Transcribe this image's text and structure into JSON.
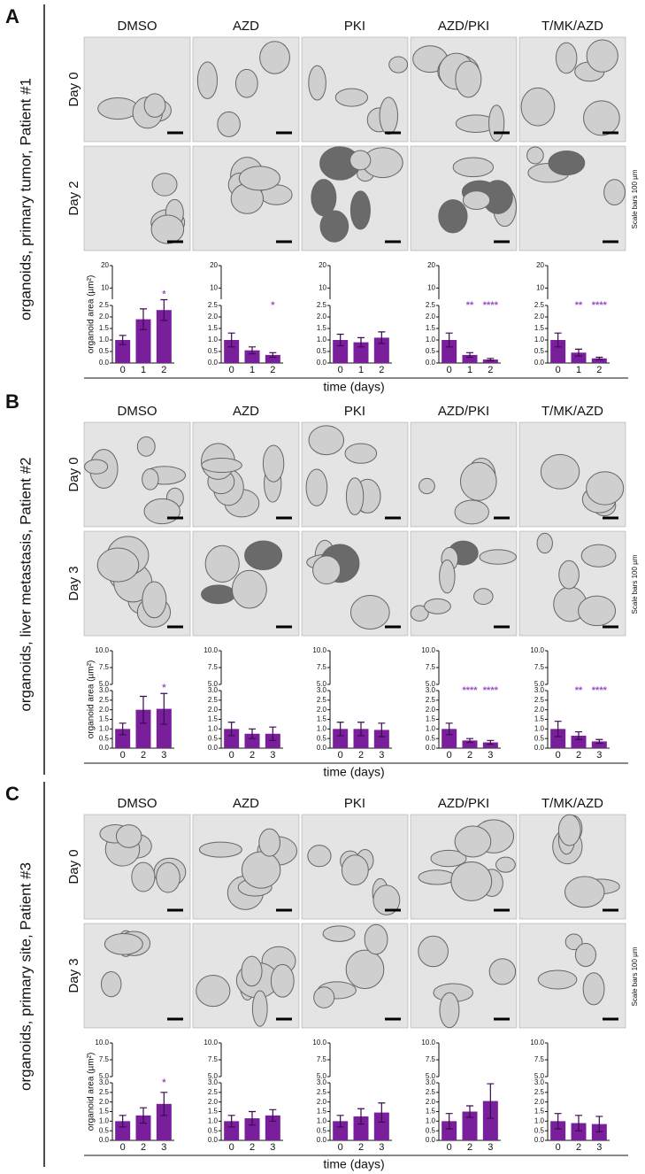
{
  "panels": [
    {
      "letter": "A",
      "side_label": "organoids, primary tumor, Patient #1",
      "conditions": [
        "DMSO",
        "AZD",
        "PKI",
        "AZD/PKI",
        "T/MK/AZD"
      ],
      "day_labels": [
        "Day 0",
        "Day 2"
      ],
      "scale_note": "Scale bars 100 µm",
      "y_label": "organoid area (µm²)",
      "x_label": "time (days)",
      "y_axis": {
        "lower": {
          "ylim": [
            0,
            2.5
          ],
          "yticks": [
            {
              "value": 0,
              "label": "0.0"
            },
            {
              "value": 0.5,
              "label": "0.5"
            },
            {
              "value": 1,
              "label": "1.0"
            },
            {
              "value": 1.5,
              "label": "1.5"
            },
            {
              "value": 2,
              "label": "2.0"
            },
            {
              "value": 2.5,
              "label": "2.5"
            }
          ]
        },
        "upper": {
          "ylim": [
            5,
            20
          ],
          "yticks": [
            10,
            20
          ]
        }
      },
      "charts": [
        {
          "type": "bar",
          "categories": [
            "0",
            "1",
            "2"
          ],
          "values": [
            1.0,
            1.9,
            2.3
          ],
          "errors": [
            0.2,
            0.45,
            0.45
          ],
          "significance": [
            null,
            null,
            "*"
          ]
        },
        {
          "type": "bar",
          "categories": [
            "0",
            "1",
            "2"
          ],
          "values": [
            1.0,
            0.55,
            0.35
          ],
          "errors": [
            0.3,
            0.15,
            0.1
          ],
          "significance": [
            null,
            null,
            "*"
          ]
        },
        {
          "type": "bar",
          "categories": [
            "0",
            "1",
            "2"
          ],
          "values": [
            1.0,
            0.9,
            1.1
          ],
          "errors": [
            0.25,
            0.2,
            0.25
          ],
          "significance": [
            null,
            null,
            null
          ]
        },
        {
          "type": "bar",
          "categories": [
            "0",
            "1",
            "2"
          ],
          "values": [
            1.0,
            0.35,
            0.15
          ],
          "errors": [
            0.3,
            0.1,
            0.05
          ],
          "significance": [
            null,
            "**",
            "****"
          ]
        },
        {
          "type": "bar",
          "categories": [
            "0",
            "1",
            "2"
          ],
          "values": [
            1.0,
            0.45,
            0.2
          ],
          "errors": [
            0.3,
            0.15,
            0.05
          ],
          "significance": [
            null,
            "**",
            "****"
          ]
        }
      ]
    },
    {
      "letter": "B",
      "side_label": "organoids, liver metastasis, Patient #2",
      "conditions": [
        "DMSO",
        "AZD",
        "PKI",
        "AZD/PKI",
        "T/MK/AZD"
      ],
      "day_labels": [
        "Day 0",
        "Day 3"
      ],
      "scale_note": "Scale bars 100 µm",
      "y_label": "organoid area (µm²)",
      "x_label": "time (days)",
      "y_axis": {
        "lower": {
          "ylim": [
            0,
            3
          ],
          "yticks": [
            {
              "value": 0,
              "label": "0.0"
            },
            {
              "value": 0.5,
              "label": "0.5"
            },
            {
              "value": 1,
              "label": "1.0"
            },
            {
              "value": 1.5,
              "label": "1.5"
            },
            {
              "value": 2,
              "label": "2.0"
            },
            {
              "value": 2.5,
              "label": "2.5"
            },
            {
              "value": 3,
              "label": "3.0"
            }
          ]
        },
        "upper": {
          "ylim": [
            5,
            10
          ],
          "yticks": [
            {
              "value": 5,
              "label": "5.0"
            },
            7.5,
            {
              "value": 10,
              "label": "10.0"
            }
          ]
        }
      },
      "charts": [
        {
          "type": "bar",
          "categories": [
            "0",
            "2",
            "3"
          ],
          "values": [
            1.0,
            2.0,
            2.05
          ],
          "errors": [
            0.3,
            0.7,
            0.8
          ],
          "significance": [
            null,
            null,
            "*"
          ]
        },
        {
          "type": "bar",
          "categories": [
            "0",
            "2",
            "3"
          ],
          "values": [
            1.0,
            0.75,
            0.75
          ],
          "errors": [
            0.35,
            0.25,
            0.35
          ],
          "significance": [
            null,
            null,
            null
          ]
        },
        {
          "type": "bar",
          "categories": [
            "0",
            "2",
            "3"
          ],
          "values": [
            1.0,
            1.0,
            0.95
          ],
          "errors": [
            0.35,
            0.35,
            0.35
          ],
          "significance": [
            null,
            null,
            null
          ]
        },
        {
          "type": "bar",
          "categories": [
            "0",
            "2",
            "3"
          ],
          "values": [
            1.0,
            0.4,
            0.3
          ],
          "errors": [
            0.3,
            0.1,
            0.1
          ],
          "significance": [
            null,
            "****",
            "****"
          ]
        },
        {
          "type": "bar",
          "categories": [
            "0",
            "2",
            "3"
          ],
          "values": [
            1.0,
            0.65,
            0.35
          ],
          "errors": [
            0.4,
            0.2,
            0.1
          ],
          "significance": [
            null,
            "**",
            "****"
          ]
        }
      ]
    },
    {
      "letter": "C",
      "side_label": "organoids, primary site, Patient #3",
      "conditions": [
        "DMSO",
        "AZD",
        "PKI",
        "AZD/PKI",
        "T/MK/AZD"
      ],
      "day_labels": [
        "Day 0",
        "Day 3"
      ],
      "scale_note": "Scale bars 100 µm",
      "y_label": "organoid area (µm²)",
      "x_label": "time (days)",
      "y_axis": {
        "lower": {
          "ylim": [
            0,
            3
          ],
          "yticks": [
            {
              "value": 0,
              "label": "0.0"
            },
            {
              "value": 0.5,
              "label": "0.5"
            },
            {
              "value": 1,
              "label": "1.0"
            },
            {
              "value": 1.5,
              "label": "1.5"
            },
            {
              "value": 2,
              "label": "2.0"
            },
            {
              "value": 2.5,
              "label": "2.5"
            },
            {
              "value": 3,
              "label": "3.0"
            }
          ]
        },
        "upper": {
          "ylim": [
            5,
            10
          ],
          "yticks": [
            {
              "value": 5,
              "label": "5.0"
            },
            7.5,
            {
              "value": 10,
              "label": "10.0"
            }
          ]
        }
      },
      "charts": [
        {
          "type": "bar",
          "categories": [
            "0",
            "2",
            "3"
          ],
          "values": [
            1.0,
            1.3,
            1.9
          ],
          "errors": [
            0.3,
            0.4,
            0.6
          ],
          "significance": [
            null,
            null,
            "*"
          ]
        },
        {
          "type": "bar",
          "categories": [
            "0",
            "2",
            "3"
          ],
          "values": [
            1.0,
            1.15,
            1.3
          ],
          "errors": [
            0.3,
            0.35,
            0.3
          ],
          "significance": [
            null,
            null,
            null
          ]
        },
        {
          "type": "bar",
          "categories": [
            "0",
            "2",
            "3"
          ],
          "values": [
            1.0,
            1.25,
            1.45
          ],
          "errors": [
            0.3,
            0.4,
            0.5
          ],
          "significance": [
            null,
            null,
            null
          ]
        },
        {
          "type": "bar",
          "categories": [
            "0",
            "2",
            "3"
          ],
          "values": [
            1.0,
            1.5,
            2.05
          ],
          "errors": [
            0.4,
            0.3,
            0.9
          ],
          "significance": [
            null,
            null,
            null
          ]
        },
        {
          "type": "bar",
          "categories": [
            "0",
            "2",
            "3"
          ],
          "values": [
            1.0,
            0.9,
            0.85
          ],
          "errors": [
            0.4,
            0.4,
            0.4
          ],
          "significance": [
            null,
            null,
            null
          ]
        }
      ]
    }
  ]
}
